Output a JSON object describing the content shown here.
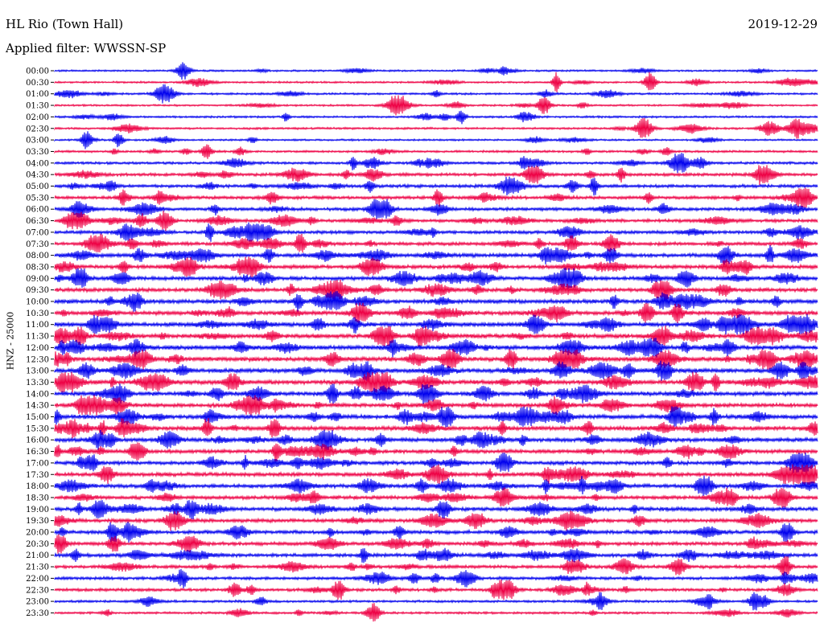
{
  "header": {
    "station": "HL Rio (Town Hall)",
    "date": "2019-12-29",
    "filter": "Applied filter: WWSSN-SP"
  },
  "chart_data": {
    "type": "line",
    "title": "HL Rio (Town Hall)",
    "date": "2019-12-29",
    "filter": "WWSSN-SP",
    "ylabel": "HNZ - 25000",
    "trace_colors": [
      "#0000ee",
      "#ee0044"
    ],
    "rows": [
      {
        "label": "00:00",
        "activity": 0.25
      },
      {
        "label": "00:30",
        "activity": 0.25
      },
      {
        "label": "01:00",
        "activity": 0.3
      },
      {
        "label": "01:30",
        "activity": 0.25
      },
      {
        "label": "02:00",
        "activity": 0.3
      },
      {
        "label": "02:30",
        "activity": 0.3
      },
      {
        "label": "03:00",
        "activity": 0.25
      },
      {
        "label": "03:30",
        "activity": 0.35
      },
      {
        "label": "04:00",
        "activity": 0.45
      },
      {
        "label": "04:30",
        "activity": 0.55
      },
      {
        "label": "05:00",
        "activity": 0.6
      },
      {
        "label": "05:30",
        "activity": 0.6
      },
      {
        "label": "06:00",
        "activity": 0.6
      },
      {
        "label": "06:30",
        "activity": 0.6
      },
      {
        "label": "07:00",
        "activity": 0.6
      },
      {
        "label": "07:30",
        "activity": 0.65
      },
      {
        "label": "08:00",
        "activity": 0.75
      },
      {
        "label": "08:30",
        "activity": 0.75
      },
      {
        "label": "09:00",
        "activity": 0.75
      },
      {
        "label": "09:30",
        "activity": 0.75
      },
      {
        "label": "10:00",
        "activity": 0.8
      },
      {
        "label": "10:30",
        "activity": 0.8
      },
      {
        "label": "11:00",
        "activity": 0.85
      },
      {
        "label": "11:30",
        "activity": 0.85
      },
      {
        "label": "12:00",
        "activity": 0.9
      },
      {
        "label": "12:30",
        "activity": 0.9
      },
      {
        "label": "13:00",
        "activity": 0.9
      },
      {
        "label": "13:30",
        "activity": 0.85
      },
      {
        "label": "14:00",
        "activity": 0.8
      },
      {
        "label": "14:30",
        "activity": 0.8
      },
      {
        "label": "15:00",
        "activity": 0.85
      },
      {
        "label": "15:30",
        "activity": 0.85
      },
      {
        "label": "16:00",
        "activity": 0.8
      },
      {
        "label": "16:30",
        "activity": 0.75
      },
      {
        "label": "17:00",
        "activity": 0.75
      },
      {
        "label": "17:30",
        "activity": 0.75
      },
      {
        "label": "18:00",
        "activity": 0.75
      },
      {
        "label": "18:30",
        "activity": 0.7
      },
      {
        "label": "19:00",
        "activity": 0.75
      },
      {
        "label": "19:30",
        "activity": 0.7
      },
      {
        "label": "20:00",
        "activity": 0.7
      },
      {
        "label": "20:30",
        "activity": 0.65
      },
      {
        "label": "21:00",
        "activity": 0.7
      },
      {
        "label": "21:30",
        "activity": 0.6
      },
      {
        "label": "22:00",
        "activity": 0.55
      },
      {
        "label": "22:30",
        "activity": 0.55
      },
      {
        "label": "23:00",
        "activity": 0.4
      },
      {
        "label": "23:30",
        "activity": 0.35
      }
    ]
  }
}
